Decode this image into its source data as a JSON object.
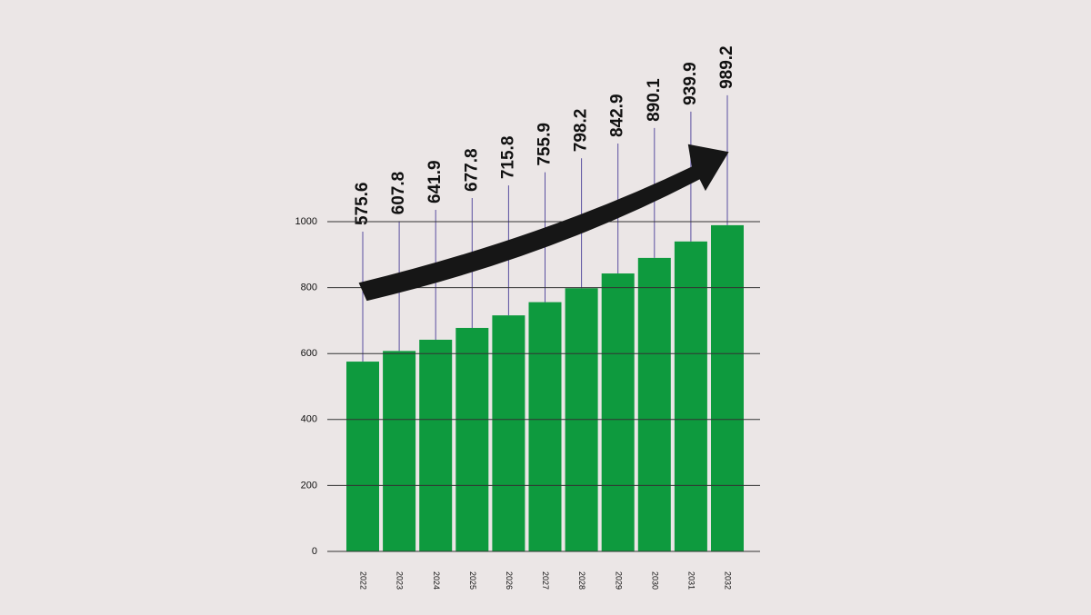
{
  "chart_data": {
    "type": "bar",
    "categories": [
      "2022",
      "2023",
      "2024",
      "2025",
      "2026",
      "2027",
      "2028",
      "2029",
      "2030",
      "2031",
      "2032"
    ],
    "values": [
      575.6,
      607.8,
      641.9,
      677.8,
      715.8,
      755.9,
      798.2,
      842.9,
      890.1,
      939.9,
      989.2
    ],
    "color": "#0e9a3e",
    "ylim": [
      0,
      1000
    ],
    "yticks": [
      0,
      200,
      400,
      600,
      800,
      1000
    ],
    "grid": true
  }
}
